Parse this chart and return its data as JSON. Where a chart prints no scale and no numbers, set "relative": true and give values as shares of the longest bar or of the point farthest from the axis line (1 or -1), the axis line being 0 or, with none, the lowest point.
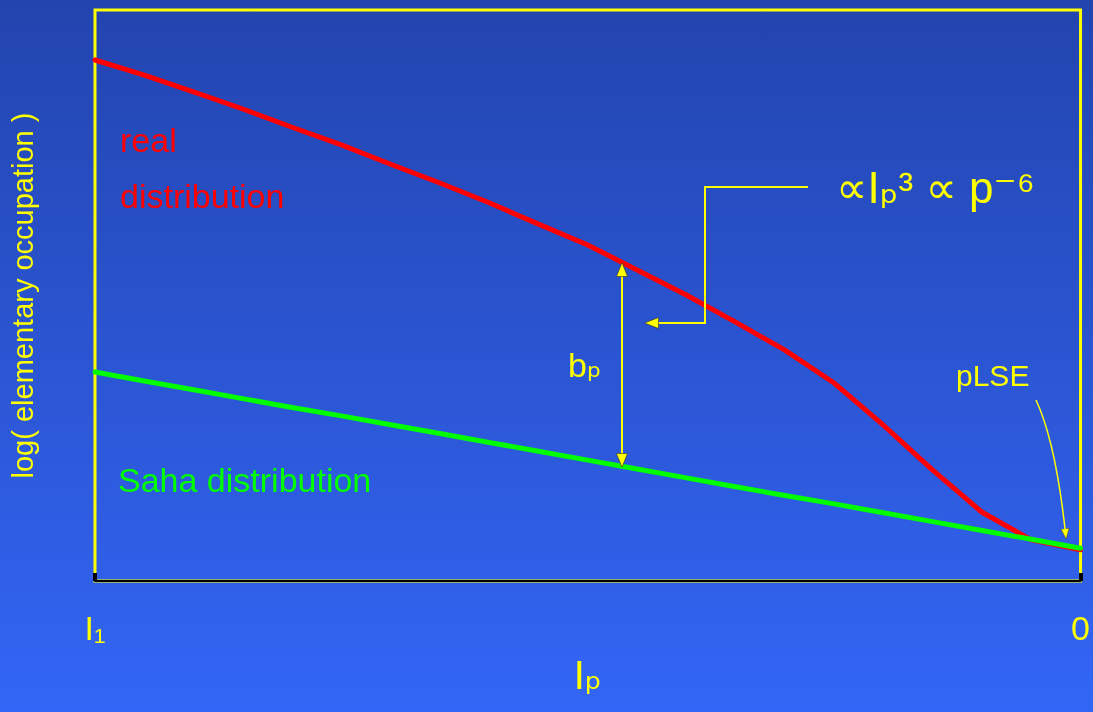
{
  "chart_data": {
    "type": "line",
    "relative": true,
    "xlabel": "Iₚ",
    "ylabel": "log( elementary occupation )",
    "categories": [
      "I₁",
      null,
      null,
      null,
      null,
      null,
      null,
      null,
      null,
      null,
      null,
      null,
      null,
      null,
      null,
      null,
      null,
      null,
      null,
      null,
      "0"
    ],
    "series": [
      {
        "name": "real distribution",
        "color": "#ff0000",
        "values": [
          1,
          0.971,
          0.939,
          0.906,
          0.871,
          0.837,
          0.8,
          0.764,
          0.726,
          0.685,
          0.645,
          0.597,
          0.549,
          0.497,
          0.443,
          0.38,
          0.299,
          0.213,
          0.132,
          0.079,
          0.06
        ]
      },
      {
        "name": "Saha distribution",
        "color": "#00ff00",
        "values": [
          0.401,
          0.384,
          0.367,
          0.35,
          0.333,
          0.317,
          0.3,
          0.283,
          0.266,
          0.249,
          0.232,
          0.215,
          0.198,
          0.181,
          0.164,
          0.148,
          0.131,
          0.114,
          0.097,
          0.08,
          0.063
        ]
      }
    ],
    "annotations": [
      "∝Iₚ³ ∝ p⁻⁶",
      "bₚ",
      "pLSE"
    ]
  }
}
